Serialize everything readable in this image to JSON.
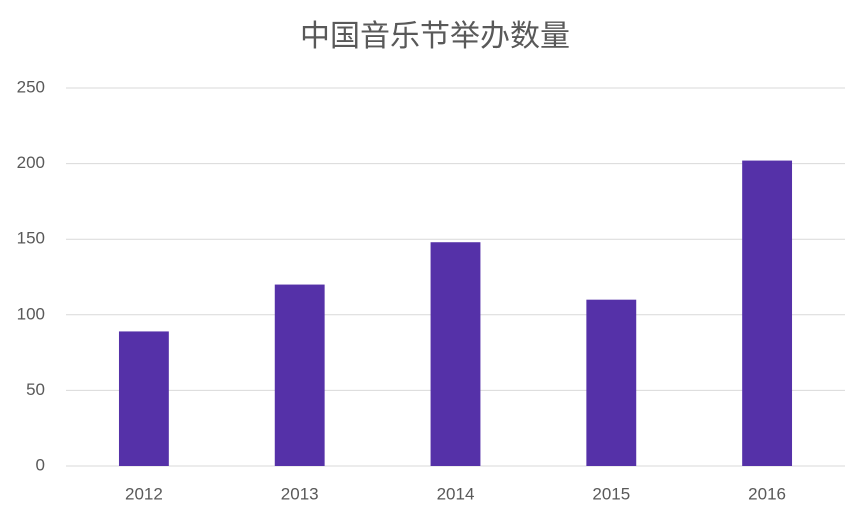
{
  "chart_data": {
    "type": "bar",
    "title": "中国音乐节举办数量",
    "categories": [
      "2012",
      "2013",
      "2014",
      "2015",
      "2016"
    ],
    "values": [
      89,
      120,
      148,
      110,
      202
    ],
    "color": "#5531a8",
    "ylim": [
      0,
      250
    ],
    "yticks": [
      0,
      50,
      100,
      150,
      200,
      250
    ],
    "grid": true
  }
}
